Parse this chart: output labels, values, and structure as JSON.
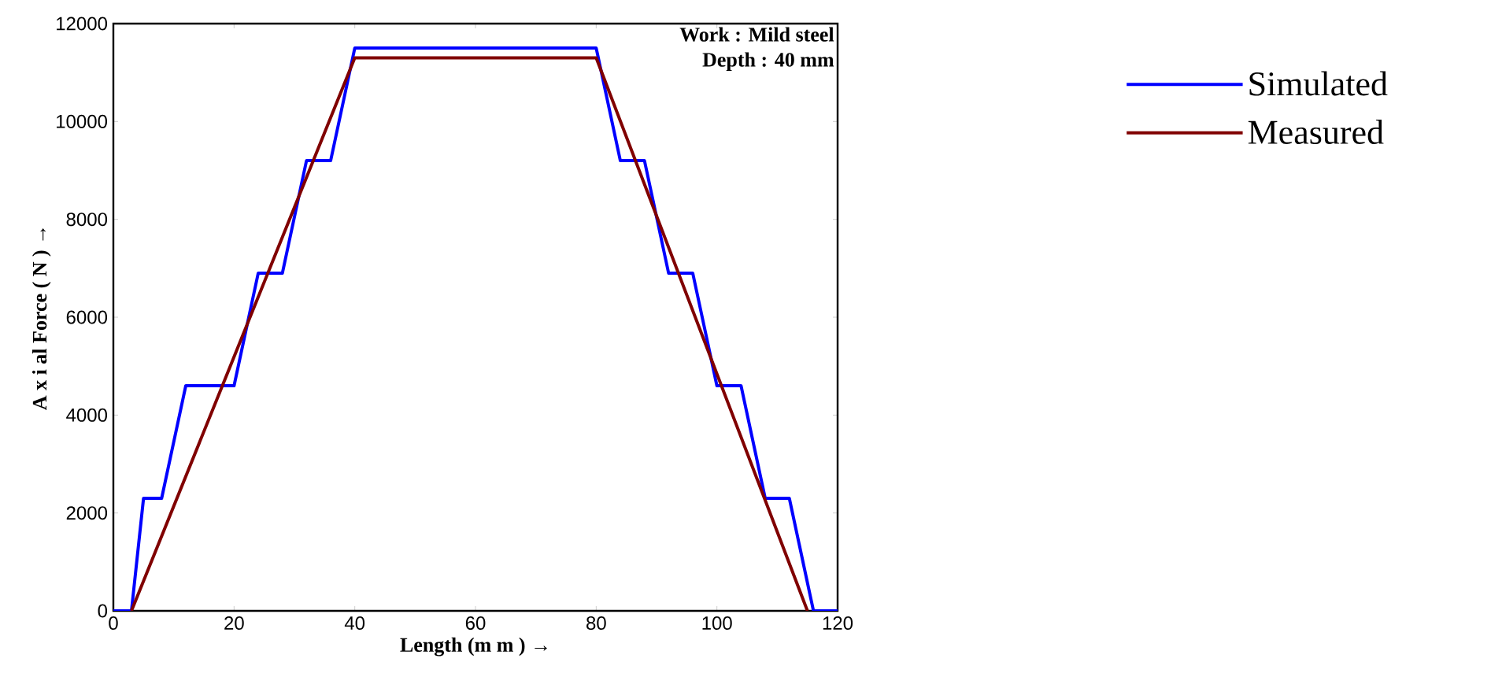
{
  "chart_data": {
    "type": "line",
    "xlabel": "Length (m m ) →",
    "ylabel": "A x i al  Force ( N )  →",
    "annotations": [
      "Work  : Mild steel",
      "Depth : 40 mm"
    ],
    "xlim": [
      0,
      120
    ],
    "ylim": [
      0,
      12000
    ],
    "xticks": [
      0,
      20,
      40,
      60,
      80,
      100,
      120
    ],
    "yticks": [
      0,
      2000,
      4000,
      6000,
      8000,
      10000,
      12000
    ],
    "grid": false,
    "legend": "right",
    "marker": "none",
    "line_style": "solid",
    "series": [
      {
        "name": "Simulated",
        "color": "#0000ff",
        "x": [
          0,
          3,
          5,
          8,
          12,
          20,
          24,
          28,
          32,
          36,
          40,
          80,
          84,
          88,
          92,
          96,
          100,
          104,
          108,
          112,
          116,
          120
        ],
        "values": [
          0,
          0,
          2300,
          2300,
          4600,
          4600,
          6900,
          6900,
          9200,
          9200,
          11500,
          11500,
          9200,
          9200,
          6900,
          6900,
          4600,
          4600,
          2300,
          2300,
          0,
          0
        ]
      },
      {
        "name": "Measured",
        "color": "#800000",
        "x": [
          3,
          40,
          80,
          115
        ],
        "values": [
          0,
          11300,
          11300,
          0
        ]
      }
    ]
  }
}
